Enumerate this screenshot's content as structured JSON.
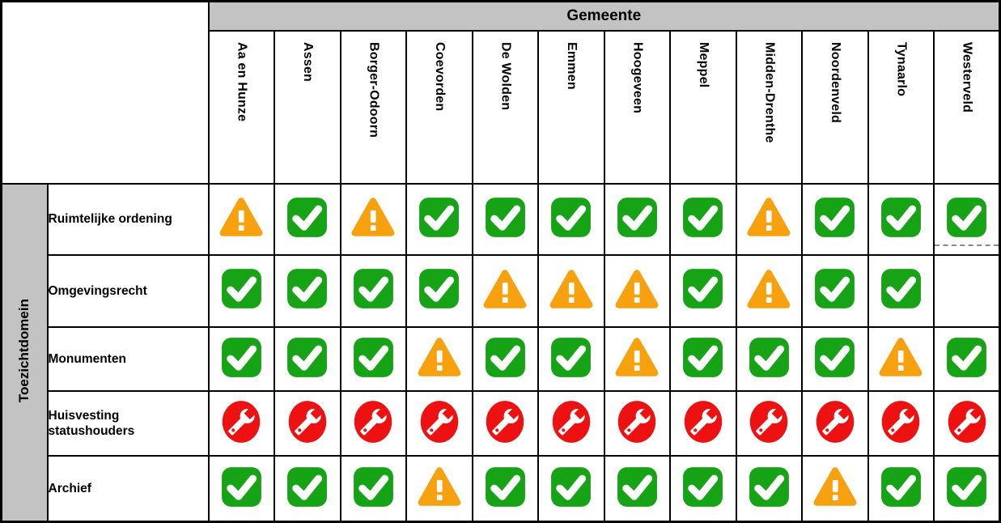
{
  "header": {
    "gemeente_label": "Gemeente",
    "toezichtdomein_label": "Toezichtdomein"
  },
  "chart_data": {
    "type": "table",
    "title": "",
    "column_group_label": "Gemeente",
    "row_group_label": "Toezichtdomein",
    "columns": [
      "Aa en Hunze",
      "Assen",
      "Borger-Odoorn",
      "Coevorden",
      "De Wolden",
      "Emmen",
      "Hoogeveen",
      "Meppel",
      "Midden-Drenthe",
      "Noordenveld",
      "Tynaarlo",
      "Westerveld"
    ],
    "rows": [
      {
        "label": "Ruimtelijke ordening",
        "statuses": [
          "warning",
          "check",
          "warning",
          "check",
          "check",
          "check",
          "check",
          "check",
          "warning",
          "check",
          "check",
          "check"
        ]
      },
      {
        "label": "Omgevingsrecht",
        "statuses": [
          "check",
          "check",
          "check",
          "check",
          "warning",
          "warning",
          "warning",
          "check",
          "warning",
          "check",
          "check",
          "none"
        ]
      },
      {
        "label": "Monumenten",
        "statuses": [
          "check",
          "check",
          "check",
          "warning",
          "check",
          "check",
          "warning",
          "check",
          "check",
          "check",
          "warning",
          "check"
        ]
      },
      {
        "label": "Huisvesting statushouders",
        "statuses": [
          "wrench",
          "wrench",
          "wrench",
          "wrench",
          "wrench",
          "wrench",
          "wrench",
          "wrench",
          "wrench",
          "wrench",
          "wrench",
          "wrench"
        ]
      },
      {
        "label": "Archief",
        "statuses": [
          "check",
          "check",
          "check",
          "warning",
          "check",
          "check",
          "check",
          "check",
          "check",
          "warning",
          "check",
          "check"
        ]
      }
    ]
  },
  "icons": {
    "check": "check-icon",
    "warning": "warning-triangle-icon",
    "wrench": "wrench-icon"
  },
  "colors": {
    "check_green": "#16A316",
    "warning_orange": "#F7A10E",
    "wrench_red": "#EE1111",
    "header_gray": "#C3C3C3",
    "border_black": "#000000",
    "dashed_gray": "#8A8A8A"
  },
  "artifacts": {
    "dashed_line_cell": {
      "row": 0,
      "col": 11
    }
  }
}
